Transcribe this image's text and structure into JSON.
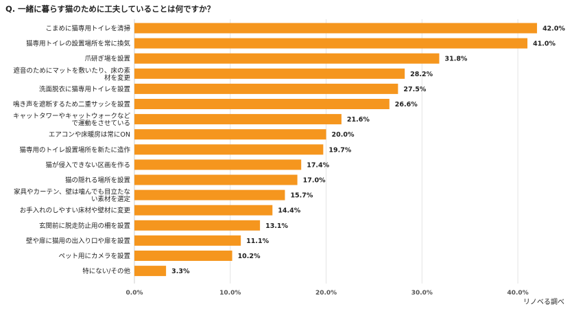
{
  "title": "Q.  一緒に暮らす猫のために工夫していることは何ですか？",
  "source": "リノベる調べ",
  "colors": {
    "bar": "#F5961E",
    "grid": "#e3e3e3",
    "axis": "#cccccc",
    "label": "#222222",
    "tick": "#555555"
  },
  "chart_data": {
    "type": "bar",
    "orientation": "horizontal",
    "categories": [
      [
        "こまめに猫専用トイレを清掃"
      ],
      [
        "猫専用トイレの設置場所を常に換気"
      ],
      [
        "爪研ぎ場を設置"
      ],
      [
        "遮音のためにマットを敷いたり、床の素",
        "材を変更"
      ],
      [
        "洗面脱衣に猫専用トイレを設置"
      ],
      [
        "鳴き声を遮断するため二重サッシを設置"
      ],
      [
        "キャットタワーやキャットウォークなど",
        "で運動をさせている"
      ],
      [
        "エアコンや床暖房は常にON"
      ],
      [
        "猫専用のトイレ設置場所を新たに造作"
      ],
      [
        "猫が侵入できない区画を作る"
      ],
      [
        "猫の隠れる場所を設置"
      ],
      [
        "家具やカーテン、壁は噛んでも目立たな",
        "い素材を選定"
      ],
      [
        "お手入れのしやすい床材や壁材に変更"
      ],
      [
        "玄関前に脱走防止用の柵を設置"
      ],
      [
        "壁や扉に猫用の出入り口や扉を設置"
      ],
      [
        "ペット用にカメラを設置"
      ],
      [
        "特にない/その他"
      ]
    ],
    "values": [
      42.0,
      41.0,
      31.8,
      28.2,
      27.5,
      26.6,
      21.6,
      20.0,
      19.7,
      17.4,
      17.0,
      15.7,
      14.4,
      13.1,
      11.1,
      10.2,
      3.3
    ],
    "value_labels": [
      "42.0%",
      "41.0%",
      "31.8%",
      "28.2%",
      "27.5%",
      "26.6%",
      "21.6%",
      "20.0%",
      "19.7%",
      "17.4%",
      "17.0%",
      "15.7%",
      "14.4%",
      "13.1%",
      "11.1%",
      "10.2%",
      "3.3%"
    ],
    "xlim": [
      0,
      45
    ],
    "x_ticks": [
      0,
      10,
      20,
      30,
      40
    ],
    "x_tick_labels": [
      "0.0%",
      "10.0%",
      "20.0%",
      "30.0%",
      "40.0%"
    ],
    "grid": true
  }
}
